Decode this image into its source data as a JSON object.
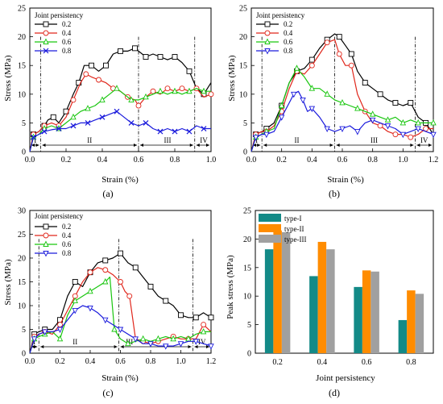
{
  "chart_data": [
    {
      "type": "line",
      "panel_label": "(a)",
      "xlabel": "Strain (%)",
      "ylabel": "Stress (MPa)",
      "xlim": [
        0,
        1.0
      ],
      "ylim": [
        0,
        25
      ],
      "xticks": [
        "0.0",
        "0.2",
        "0.4",
        "0.6",
        "0.8",
        "1.0"
      ],
      "xtick_values": [
        0,
        0.2,
        0.4,
        0.6,
        0.8,
        1.0
      ],
      "yticks": [
        "0",
        "5",
        "10",
        "15",
        "20",
        "25"
      ],
      "ytick_values": [
        0,
        5,
        10,
        15,
        20,
        25
      ],
      "legend_title": "Joint persistency",
      "legend_position": "top-left",
      "region_lines": [
        0.06,
        0.6,
        0.91
      ],
      "regions": [
        {
          "label": "I",
          "x": 0.03
        },
        {
          "label": "II",
          "x": 0.33
        },
        {
          "label": "III",
          "x": 0.76
        },
        {
          "label": "IV",
          "x": 0.96
        }
      ],
      "series": [
        {
          "name": "0.2",
          "color": "#000000",
          "marker": "square",
          "x": [
            0,
            0.02,
            0.05,
            0.08,
            0.1,
            0.13,
            0.16,
            0.2,
            0.24,
            0.27,
            0.3,
            0.34,
            0.38,
            0.42,
            0.46,
            0.5,
            0.54,
            0.58,
            0.6,
            0.64,
            0.68,
            0.72,
            0.76,
            0.8,
            0.84,
            0.88,
            0.92,
            0.96,
            1.0
          ],
          "y": [
            0,
            3,
            3.5,
            4.5,
            5.5,
            6,
            5,
            7,
            10,
            12,
            15,
            15,
            14,
            15,
            17,
            17.5,
            17.5,
            18,
            17.5,
            16.5,
            17,
            16.5,
            16,
            16.5,
            15.5,
            14,
            11,
            10,
            12
          ]
        },
        {
          "name": "0.4",
          "color": "#e0261b",
          "marker": "circle",
          "x": [
            0,
            0.02,
            0.05,
            0.08,
            0.12,
            0.16,
            0.2,
            0.24,
            0.28,
            0.31,
            0.34,
            0.38,
            0.42,
            0.46,
            0.5,
            0.54,
            0.58,
            0.6,
            0.64,
            0.68,
            0.72,
            0.76,
            0.8,
            0.84,
            0.88,
            0.92,
            0.96,
            1.0
          ],
          "y": [
            0,
            3,
            3.5,
            4.5,
            5,
            4.5,
            6,
            9,
            12,
            13.5,
            13,
            12.5,
            12,
            11,
            10.5,
            9.5,
            9,
            8,
            9.5,
            10.5,
            10,
            11,
            10.5,
            11,
            10.5,
            11,
            9.5,
            10
          ]
        },
        {
          "name": "0.6",
          "color": "#19c60f",
          "marker": "triangle-up",
          "x": [
            0,
            0.02,
            0.05,
            0.08,
            0.12,
            0.16,
            0.2,
            0.24,
            0.28,
            0.32,
            0.36,
            0.4,
            0.44,
            0.48,
            0.52,
            0.56,
            0.6,
            0.64,
            0.68,
            0.72,
            0.76,
            0.8,
            0.84,
            0.88,
            0.92,
            0.96,
            1.0
          ],
          "y": [
            0,
            2.5,
            3,
            4,
            4.5,
            4,
            5,
            6,
            7,
            7.5,
            8,
            9,
            10,
            11,
            10,
            9,
            9,
            9.5,
            10,
            10.5,
            10,
            10.5,
            10,
            10.5,
            11,
            10.5,
            10.5
          ]
        },
        {
          "name": "0.8",
          "color": "#1a1adc",
          "marker": "x",
          "x": [
            0,
            0.02,
            0.05,
            0.08,
            0.12,
            0.16,
            0.2,
            0.24,
            0.28,
            0.32,
            0.36,
            0.4,
            0.44,
            0.48,
            0.52,
            0.56,
            0.6,
            0.64,
            0.68,
            0.72,
            0.76,
            0.8,
            0.84,
            0.88,
            0.92,
            0.96,
            1.0
          ],
          "y": [
            0,
            2.5,
            3,
            3.5,
            3.8,
            4,
            4,
            4.5,
            5,
            5,
            5.5,
            6,
            6.5,
            7,
            6,
            5,
            4.5,
            5,
            4,
            3.5,
            4,
            3.5,
            4,
            3.5,
            4.5,
            4,
            4
          ]
        }
      ]
    },
    {
      "type": "line",
      "panel_label": "(b)",
      "xlabel": "Strain (%)",
      "ylabel": "Stress (MPa)",
      "xlim": [
        0,
        1.2
      ],
      "ylim": [
        0,
        25
      ],
      "xticks": [
        "0.0",
        "0.2",
        "0.4",
        "0.6",
        "0.8",
        "1.0",
        "1.2"
      ],
      "xtick_values": [
        0,
        0.2,
        0.4,
        0.6,
        0.8,
        1.0,
        1.2
      ],
      "yticks": [
        "0",
        "5",
        "10",
        "15",
        "20",
        "25"
      ],
      "ytick_values": [
        0,
        5,
        10,
        15,
        20,
        25
      ],
      "legend_title": "Joint persistency",
      "legend_position": "top-left",
      "region_lines": [
        0.07,
        0.55,
        1.08
      ],
      "regions": [
        {
          "label": "I",
          "x": 0.035
        },
        {
          "label": "II",
          "x": 0.3
        },
        {
          "label": "III",
          "x": 0.81
        },
        {
          "label": "IV",
          "x": 1.14
        }
      ],
      "series": [
        {
          "name": "0.2",
          "color": "#000000",
          "marker": "square",
          "x": [
            0,
            0.03,
            0.07,
            0.1,
            0.15,
            0.2,
            0.25,
            0.3,
            0.35,
            0.4,
            0.45,
            0.5,
            0.55,
            0.58,
            0.62,
            0.66,
            0.7,
            0.75,
            0.8,
            0.85,
            0.9,
            0.95,
            1.0,
            1.05,
            1.1,
            1.15,
            1.2
          ],
          "y": [
            0,
            3,
            3.5,
            4,
            5,
            8,
            12,
            14,
            14.5,
            16,
            18,
            19.5,
            20.5,
            20,
            18.5,
            17,
            14,
            12,
            11,
            10,
            9,
            8.5,
            8,
            8.5,
            6,
            5,
            3
          ]
        },
        {
          "name": "0.4",
          "color": "#e0261b",
          "marker": "circle",
          "x": [
            0,
            0.03,
            0.07,
            0.1,
            0.15,
            0.2,
            0.25,
            0.3,
            0.35,
            0.4,
            0.45,
            0.5,
            0.55,
            0.58,
            0.62,
            0.66,
            0.7,
            0.75,
            0.8,
            0.85,
            0.9,
            0.95,
            1.0,
            1.05,
            1.1,
            1.15,
            1.2
          ],
          "y": [
            0,
            3,
            3.5,
            3.5,
            4.5,
            7,
            11,
            14,
            13.5,
            15,
            17,
            19,
            19.5,
            17,
            15,
            15,
            10,
            7,
            5,
            4.5,
            3.5,
            3,
            3,
            2.5,
            3,
            4,
            4
          ]
        },
        {
          "name": "0.6",
          "color": "#19c60f",
          "marker": "triangle-up",
          "x": [
            0,
            0.03,
            0.07,
            0.1,
            0.15,
            0.2,
            0.25,
            0.3,
            0.35,
            0.4,
            0.45,
            0.5,
            0.55,
            0.6,
            0.65,
            0.7,
            0.75,
            0.8,
            0.85,
            0.9,
            0.95,
            1.0,
            1.05,
            1.1,
            1.15,
            1.2
          ],
          "y": [
            0,
            2.5,
            3,
            3.5,
            4,
            8,
            12,
            14.5,
            13,
            11,
            11,
            10,
            9,
            8.5,
            8,
            7.5,
            7,
            6.5,
            6,
            5.5,
            6,
            5,
            5.5,
            5,
            5,
            5
          ]
        },
        {
          "name": "0.8",
          "color": "#1a1adc",
          "marker": "triangle-down",
          "x": [
            0,
            0.03,
            0.07,
            0.1,
            0.15,
            0.2,
            0.25,
            0.28,
            0.31,
            0.34,
            0.37,
            0.4,
            0.45,
            0.5,
            0.55,
            0.6,
            0.65,
            0.7,
            0.75,
            0.8,
            0.85,
            0.9,
            0.95,
            1.0,
            1.05,
            1.1,
            1.15,
            1.2
          ],
          "y": [
            0,
            2.5,
            3,
            3,
            3.5,
            6,
            8.5,
            10,
            10.5,
            9,
            7,
            7.5,
            6,
            4,
            3.5,
            4,
            4.5,
            3.5,
            5,
            5.5,
            5,
            4.5,
            4,
            3,
            3.5,
            4,
            3.5,
            3
          ]
        }
      ]
    },
    {
      "type": "line",
      "panel_label": "(c)",
      "xlabel": "Strain (%)",
      "ylabel": "Stress (MPa)",
      "xlim": [
        0,
        1.2
      ],
      "ylim": [
        0,
        30
      ],
      "xticks": [
        "0.0",
        "0.2",
        "0.4",
        "0.6",
        "0.8",
        "1.0",
        "1.2"
      ],
      "xtick_values": [
        0,
        0.2,
        0.4,
        0.6,
        0.8,
        1.0,
        1.2
      ],
      "yticks": [
        "0",
        "5",
        "10",
        "15",
        "20",
        "25",
        "30"
      ],
      "ytick_values": [
        0,
        5,
        10,
        15,
        20,
        25,
        30
      ],
      "legend_title": "Joint persistency",
      "legend_position": "top-left",
      "region_lines": [
        0.06,
        0.59,
        1.08
      ],
      "regions": [
        {
          "label": "I",
          "x": 0.03
        },
        {
          "label": "II",
          "x": 0.3
        },
        {
          "label": "III",
          "x": 0.66
        },
        {
          "label": "IV",
          "x": 1.14
        }
      ],
      "series": [
        {
          "name": "0.2",
          "color": "#000000",
          "marker": "square",
          "x": [
            0,
            0.03,
            0.06,
            0.1,
            0.15,
            0.2,
            0.25,
            0.3,
            0.35,
            0.4,
            0.45,
            0.5,
            0.55,
            0.6,
            0.65,
            0.7,
            0.75,
            0.8,
            0.85,
            0.9,
            0.95,
            1.0,
            1.05,
            1.1,
            1.15,
            1.2
          ],
          "y": [
            0,
            4,
            4.5,
            5,
            5,
            7,
            12,
            15,
            14,
            17,
            19,
            19.5,
            20,
            21,
            19,
            18,
            16,
            14,
            12,
            11,
            10,
            8,
            7.5,
            7.5,
            8.5,
            7.5
          ]
        },
        {
          "name": "0.4",
          "color": "#e0261b",
          "marker": "circle",
          "x": [
            0,
            0.03,
            0.06,
            0.1,
            0.15,
            0.2,
            0.25,
            0.3,
            0.35,
            0.4,
            0.45,
            0.5,
            0.55,
            0.6,
            0.63,
            0.66,
            0.7,
            0.75,
            0.8,
            0.85,
            0.9,
            0.95,
            1.0,
            1.05,
            1.1,
            1.15,
            1.2
          ],
          "y": [
            0,
            3.5,
            4,
            4.5,
            4,
            6,
            9,
            12,
            15,
            17,
            18,
            17.5,
            16.5,
            15,
            13,
            12,
            3,
            2.5,
            2,
            2.5,
            3,
            3.5,
            3,
            3,
            3,
            6,
            4.5
          ]
        },
        {
          "name": "0.6",
          "color": "#19c60f",
          "marker": "triangle-up",
          "x": [
            0,
            0.03,
            0.06,
            0.1,
            0.15,
            0.2,
            0.25,
            0.3,
            0.35,
            0.4,
            0.45,
            0.5,
            0.53,
            0.56,
            0.6,
            0.65,
            0.7,
            0.75,
            0.8,
            0.85,
            0.9,
            0.95,
            1.0,
            1.05,
            1.1,
            1.15,
            1.2
          ],
          "y": [
            0,
            3,
            3.5,
            4,
            4.5,
            3,
            8,
            11,
            12,
            13,
            14,
            15,
            16,
            5,
            3,
            2,
            2.5,
            3,
            2.5,
            3,
            3.5,
            3,
            3.5,
            3,
            4,
            4.5,
            4.5
          ]
        },
        {
          "name": "0.8",
          "color": "#1a1adc",
          "marker": "triangle-down",
          "x": [
            0,
            0.03,
            0.06,
            0.1,
            0.15,
            0.2,
            0.25,
            0.3,
            0.35,
            0.4,
            0.45,
            0.5,
            0.55,
            0.6,
            0.65,
            0.7,
            0.75,
            0.8,
            0.85,
            0.9,
            0.95,
            1.0,
            1.05,
            1.1,
            1.15,
            1.2
          ],
          "y": [
            0,
            3,
            4,
            4.5,
            4.5,
            5,
            7,
            9,
            10,
            9.5,
            8.5,
            7,
            6,
            5,
            4,
            3,
            2,
            2,
            1.5,
            1.5,
            1.5,
            2,
            2.5,
            2.5,
            2,
            1.5
          ]
        }
      ]
    },
    {
      "type": "bar",
      "panel_label": "(d)",
      "xlabel": "Joint persistency",
      "ylabel": "Peak stress (MPa)",
      "categories": [
        "0.2",
        "0.4",
        "0.6",
        "0.8"
      ],
      "ylim": [
        0,
        25
      ],
      "yticks": [
        "0",
        "5",
        "10",
        "15",
        "20",
        "25"
      ],
      "ytick_values": [
        0,
        5,
        10,
        15,
        20,
        25
      ],
      "legend_position": "top-left",
      "series": [
        {
          "name": "type-I",
          "color": "#138a87",
          "values": [
            18.2,
            13.5,
            11.6,
            5.8
          ]
        },
        {
          "name": "type-II",
          "color": "#ff8c00",
          "values": [
            21.5,
            19.5,
            14.5,
            11.0
          ]
        },
        {
          "name": "type-III",
          "color": "#a0a0a0",
          "values": [
            21.2,
            18.2,
            14.3,
            10.4
          ]
        }
      ]
    }
  ]
}
